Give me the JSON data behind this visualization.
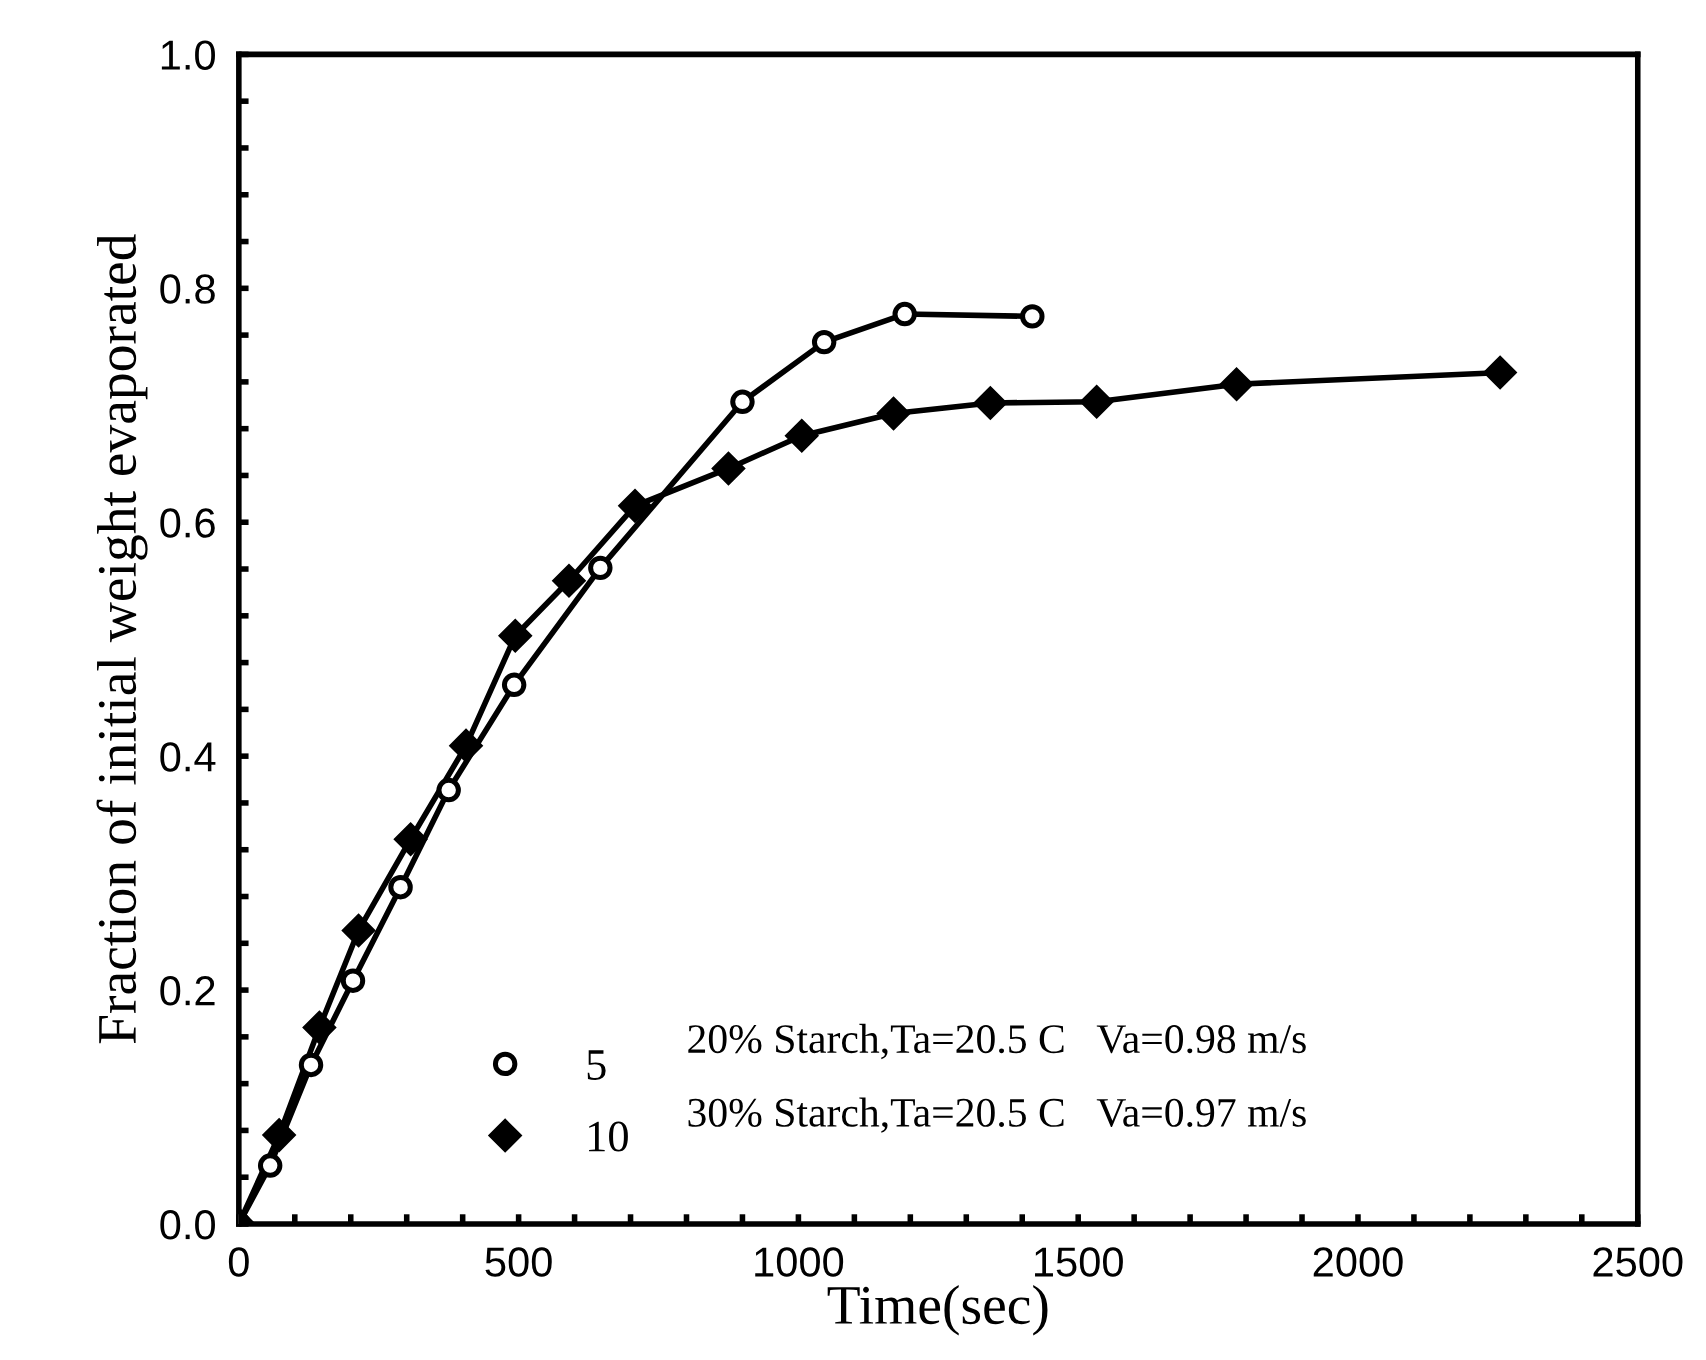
{
  "chart_data": {
    "type": "line",
    "xlabel": "Time(sec)",
    "ylabel": "Fraction of initial weight evaporated",
    "series": [
      {
        "name": "5",
        "color": "#000000",
        "marker": "circle",
        "x": [
          0,
          56,
          129,
          204,
          289,
          375,
          492,
          646,
          900,
          1046,
          1190,
          1418
        ],
        "values": [
          0.0,
          0.05,
          0.136,
          0.208,
          0.288,
          0.371,
          0.461,
          0.561,
          0.703,
          0.754,
          0.778,
          0.776
        ]
      },
      {
        "name": "10",
        "color": "#000000",
        "marker": "diamond",
        "x": [
          0,
          72,
          144,
          214,
          307,
          406,
          494,
          590,
          708,
          875,
          1006,
          1170,
          1343,
          1533,
          1783,
          2254
        ],
        "values": [
          0.0,
          0.076,
          0.168,
          0.251,
          0.329,
          0.409,
          0.503,
          0.55,
          0.614,
          0.646,
          0.674,
          0.693,
          0.702,
          0.703,
          0.718,
          0.728
        ]
      }
    ],
    "annotations": [
      "20% Starch,Ta=20.5 C   Va=0.98 m/s",
      "30% Starch,Ta=20.5 C   Va=0.97 m/s"
    ],
    "xlim": [
      0,
      2500
    ],
    "xticks": [
      0,
      {
        "value": 100,
        "label": null
      },
      {
        "value": 200,
        "label": null
      },
      {
        "value": 300,
        "label": null
      },
      {
        "value": 400,
        "label": null
      },
      500,
      {
        "value": 600,
        "label": null
      },
      {
        "value": 700,
        "label": null
      },
      {
        "value": 800,
        "label": null
      },
      {
        "value": 900,
        "label": null
      },
      1000,
      {
        "value": 1100,
        "label": null
      },
      {
        "value": 1200,
        "label": null
      },
      {
        "value": 1300,
        "label": null
      },
      {
        "value": 1400,
        "label": null
      },
      1500,
      {
        "value": 1600,
        "label": null
      },
      {
        "value": 1700,
        "label": null
      },
      {
        "value": 1800,
        "label": null
      },
      {
        "value": 1900,
        "label": null
      },
      2000,
      {
        "value": 2100,
        "label": null
      },
      {
        "value": 2200,
        "label": null
      },
      {
        "value": 2300,
        "label": null
      },
      {
        "value": 2400,
        "label": null
      },
      2500
    ],
    "ylim": [
      0,
      1.0
    ],
    "yticks": [
      {
        "value": 0,
        "label": "0.0"
      },
      {
        "value": 0.04,
        "label": null
      },
      {
        "value": 0.08,
        "label": null
      },
      {
        "value": 0.12,
        "label": null
      },
      {
        "value": 0.16,
        "label": null
      },
      0.2,
      {
        "value": 0.24,
        "label": null
      },
      {
        "value": 0.28,
        "label": null
      },
      {
        "value": 0.32,
        "label": null
      },
      {
        "value": 0.36,
        "label": null
      },
      0.4,
      {
        "value": 0.44,
        "label": null
      },
      {
        "value": 0.48,
        "label": null
      },
      {
        "value": 0.52,
        "label": null
      },
      {
        "value": 0.56,
        "label": null
      },
      0.6,
      {
        "value": 0.64,
        "label": null
      },
      {
        "value": 0.68,
        "label": null
      },
      {
        "value": 0.72,
        "label": null
      },
      {
        "value": 0.76,
        "label": null
      },
      0.8,
      {
        "value": 0.84,
        "label": null
      },
      {
        "value": 0.88,
        "label": null
      },
      {
        "value": 0.92,
        "label": null
      },
      {
        "value": 0.96,
        "label": null
      },
      {
        "value": 1.0,
        "label": "1.0"
      }
    ],
    "grid": false,
    "legend": "bottom left"
  }
}
